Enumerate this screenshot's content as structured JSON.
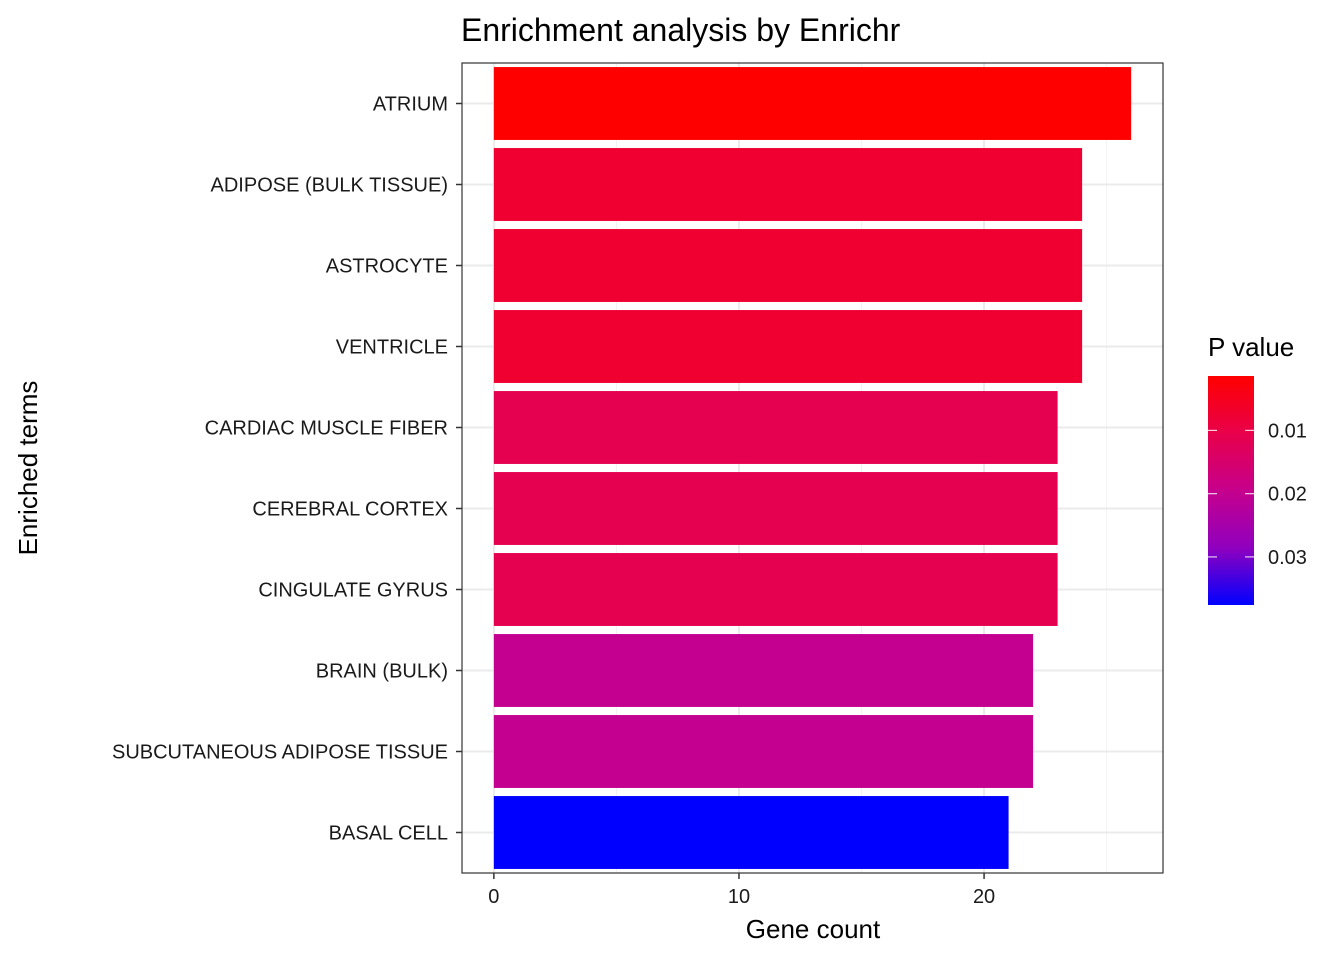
{
  "chart_data": {
    "type": "bar",
    "orientation": "horizontal",
    "title": "Enrichment analysis by Enrichr",
    "xlabel": "Gene count",
    "ylabel": "Enriched terms",
    "categories": [
      "ATRIUM",
      "ADIPOSE (BULK TISSUE)",
      "ASTROCYTE",
      "VENTRICLE",
      "CARDIAC MUSCLE FIBER",
      "CEREBRAL CORTEX",
      "CINGULATE GYRUS",
      "BRAIN (BULK)",
      "SUBCUTANEOUS ADIPOSE TISSUE",
      "BASAL CELL"
    ],
    "values": [
      26,
      24,
      24,
      24,
      23,
      23,
      23,
      22,
      22,
      21
    ],
    "p_values": [
      0.0014,
      0.006,
      0.006,
      0.006,
      0.01,
      0.01,
      0.01,
      0.02,
      0.02,
      0.0376
    ],
    "bar_colors": [
      "#FF0000",
      "#F00030",
      "#F00030",
      "#F00030",
      "#E50050",
      "#E50050",
      "#E50050",
      "#C40090",
      "#C40090",
      "#0000FF"
    ],
    "xlim": [
      -1.3,
      27.3
    ],
    "xticks": [
      0,
      10,
      20
    ],
    "xtick_labels": [
      "0",
      "10",
      "20"
    ],
    "grid": true,
    "legend": {
      "title": "P value",
      "placement": "right",
      "range": [
        0.0014,
        0.0376
      ],
      "ticks": [
        0.01,
        0.02,
        0.03
      ],
      "tick_labels": [
        "0.01",
        "0.02",
        "0.03"
      ],
      "low_color": "#FF0000",
      "high_color": "#0000FF"
    }
  }
}
